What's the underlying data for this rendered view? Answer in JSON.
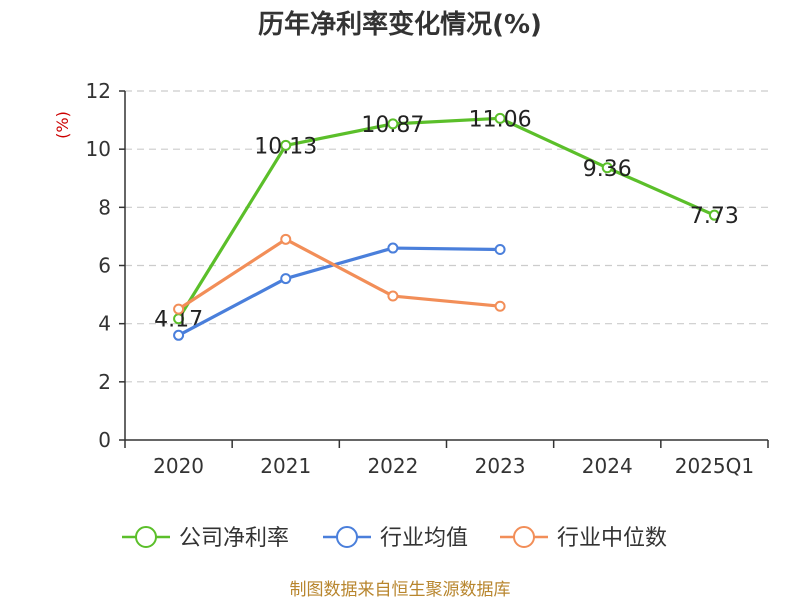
{
  "chart_data": {
    "type": "line",
    "title": "历年净利率变化情况(%)",
    "ylabel": "(%)",
    "xlabel": "",
    "categories": [
      "2020",
      "2021",
      "2022",
      "2023",
      "2024",
      "2025Q1"
    ],
    "ylim": [
      0,
      12
    ],
    "yticks": [
      0,
      2,
      4,
      6,
      8,
      10,
      12
    ],
    "grid": true,
    "legend": "bottom",
    "series": [
      {
        "name": "公司净利率",
        "color": "#5bbf2a",
        "labeled": true,
        "values": [
          4.17,
          10.13,
          10.87,
          11.06,
          9.36,
          7.73
        ],
        "labels": [
          "4.17",
          "10.13",
          "10.87",
          "11.06",
          "9.36",
          "7.73"
        ]
      },
      {
        "name": "行业均值",
        "color": "#4a7fdb",
        "labeled": false,
        "values": [
          3.6,
          5.55,
          6.6,
          6.55,
          null,
          null
        ]
      },
      {
        "name": "行业中位数",
        "color": "#f28e58",
        "labeled": false,
        "values": [
          4.5,
          6.9,
          4.95,
          4.6,
          null,
          null
        ]
      }
    ]
  },
  "source": "制图数据来自恒生聚源数据库"
}
